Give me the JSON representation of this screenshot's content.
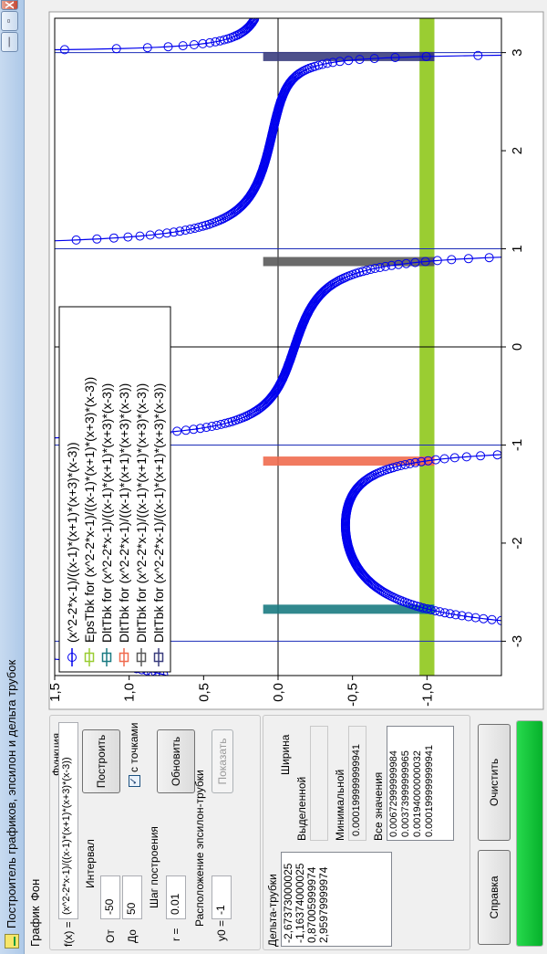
{
  "window": {
    "title": "Построитель графиков, эпсилон и дельта трубок",
    "controls": {
      "minimize": "—",
      "maximize": "▫",
      "close": "X"
    }
  },
  "menu": {
    "items": [
      "График",
      "Фон"
    ]
  },
  "function": {
    "group_label": "Функция",
    "fx_label": "f(x) =",
    "expression": "(x^2-2*x-1)/((x-1)*(x+1)*(x+3)*(x-3))"
  },
  "interval": {
    "label": "Интервал",
    "from_label": "От",
    "from_value": "-50",
    "to_label": "До",
    "to_value": "50"
  },
  "build": {
    "button": "Построить",
    "with_points_label": "с точками",
    "with_points_checked": true
  },
  "step": {
    "label": "Шаг построения",
    "r_label": "r =",
    "r_value": "0.01",
    "update_button": "Обновить"
  },
  "epsilon_tube": {
    "label": "Расположение эпсилон-трубки",
    "y0_label": "y0 =",
    "y0_value": "-1",
    "show_button": "Показать"
  },
  "delta_tube": {
    "label": "Дельта-трубки",
    "values": [
      "-2,67373000025",
      "-1,16374000025",
      "0,87005999974",
      "2,95979999974"
    ]
  },
  "width": {
    "label": "Ширина",
    "selected_label": "Выделенной",
    "selected_value": "",
    "min_label": "Минимальной",
    "min_value": "0.000199999999941",
    "all_label": "Все значения",
    "all_values": [
      "0.00672999999984",
      "0.00373999999965",
      "0.00194000000032",
      "0.000199999999941"
    ]
  },
  "buttons": {
    "help": "Справка",
    "clear": "Очистить"
  },
  "progress": {
    "value": 1.0,
    "color": "#16c23a"
  },
  "chart_data": {
    "type": "line",
    "function_label": "(x^2-2*x-1)/((x-1)*(x+1)*(x+3)*(x-3))",
    "xlim": [
      -3.35,
      3.35
    ],
    "ylim": [
      -1.5,
      1.5
    ],
    "x_ticks": [
      "-3",
      "-2",
      "-1",
      "0",
      "1",
      "2",
      "3"
    ],
    "y_ticks": [
      "-1,0",
      "-0,5",
      "0,0",
      "0,5",
      "1,0",
      "1,5"
    ],
    "asymptotes_x": [
      -3,
      -1,
      1,
      3
    ],
    "epsilon_tube": {
      "y0": -1,
      "color": "#9acd32"
    },
    "delta_tubes": [
      {
        "x": -2.67373000025,
        "color": "#1b7b82"
      },
      {
        "x": -1.16374000025,
        "color": "#f06b4f"
      },
      {
        "x": 0.87005999974,
        "color": "#5a5a5a"
      },
      {
        "x": 2.95979999974,
        "color": "#3b3e7e"
      }
    ],
    "line_color": "#0000ee",
    "legend": [
      {
        "label": "(x^2-2*x-1)/((x-1)*(x+1)*(x+3)*(x-3))",
        "color": "#0000ee",
        "marker": "circle"
      },
      {
        "label": "EpsTbk for (x^2-2*x-1)/((x-1)*(x+1)*(x+3)*(x-3))",
        "color": "#9acd32",
        "marker": "square"
      },
      {
        "label": "DltTbk for (x^2-2*x-1)/((x-1)*(x+1)*(x+3)*(x-3))",
        "color": "#1b7b82",
        "marker": "square"
      },
      {
        "label": "DltTbk for (x^2-2*x-1)/((x-1)*(x+1)*(x+3)*(x-3))",
        "color": "#f06b4f",
        "marker": "square"
      },
      {
        "label": "DltTbk for (x^2-2*x-1)/((x-1)*(x+1)*(x+3)*(x-3))",
        "color": "#5a5a5a",
        "marker": "square"
      },
      {
        "label": "DltTbk for (x^2-2*x-1)/((x-1)*(x+1)*(x+3)*(x-3))",
        "color": "#3b3e7e",
        "marker": "square"
      }
    ],
    "legend_position": "top-left",
    "grid": false
  }
}
